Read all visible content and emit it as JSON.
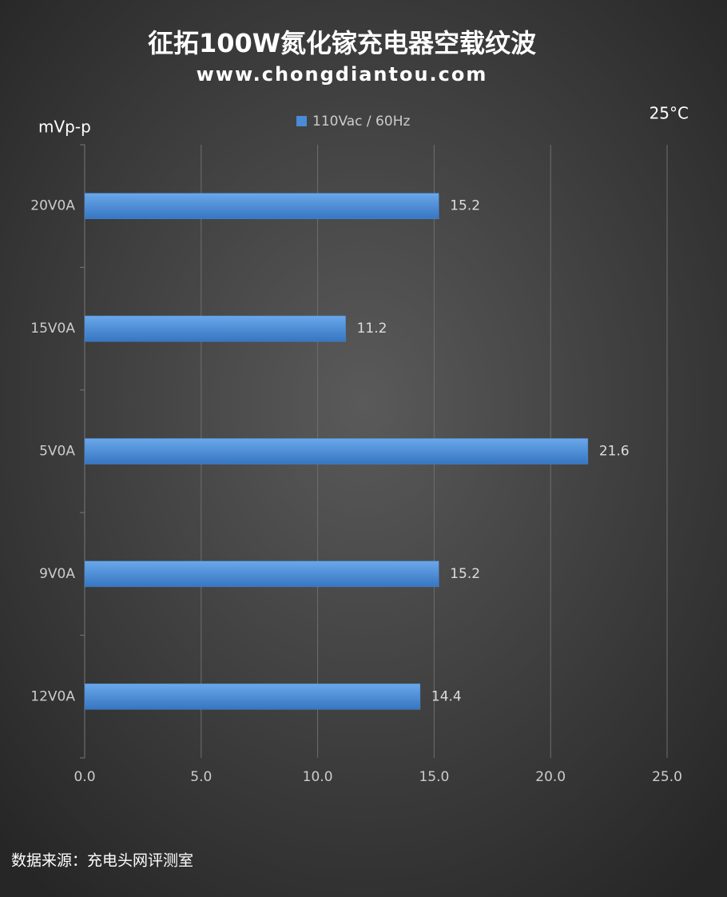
{
  "chart_data": {
    "type": "hbar",
    "title": "征拓100W氮化镓充电器空载纹波",
    "subtitle": "www.chongdiantou.com",
    "value_axis_label": "mVp-p",
    "annotation": "25°C",
    "source": "数据来源：充电头网评测室",
    "categories": [
      "20V0A",
      "15V0A",
      "5V0A",
      "9V0A",
      "12V0A"
    ],
    "series": [
      {
        "name": "110Vac / 60Hz",
        "color": "#4a8ad6",
        "values": [
          15.2,
          11.2,
          21.6,
          15.2,
          14.4
        ]
      }
    ],
    "xlim": [
      0,
      25
    ],
    "xticks": [
      {
        "value": 0,
        "label": "0.0"
      },
      {
        "value": 5,
        "label": "5.0"
      },
      {
        "value": 10,
        "label": "10.0"
      },
      {
        "value": 15,
        "label": "15.0"
      },
      {
        "value": 20,
        "label": "20.0"
      },
      {
        "value": 25,
        "label": "25.0"
      }
    ],
    "grid": true,
    "legend": "top"
  }
}
